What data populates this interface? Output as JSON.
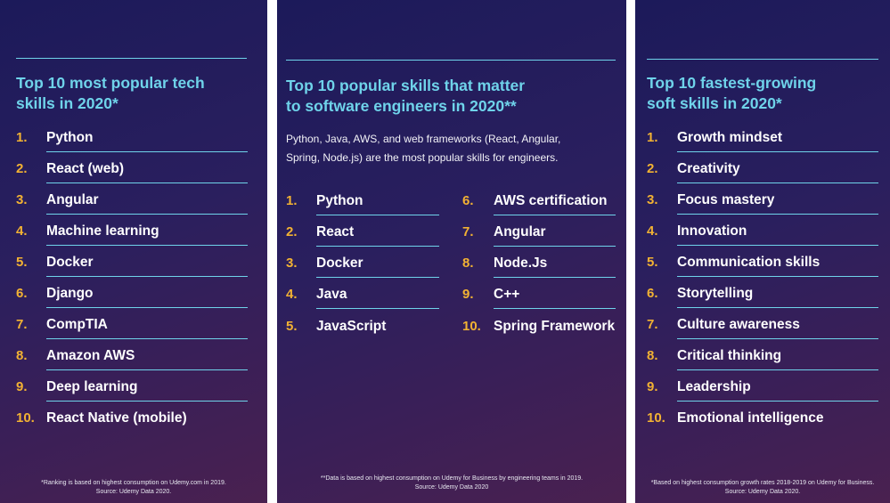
{
  "panels": [
    {
      "title_line1": "Top 10 most popular tech",
      "title_line2": "skills in 2020*",
      "items": [
        {
          "num": "1.",
          "label": "Python"
        },
        {
          "num": "2.",
          "label": "React (web)"
        },
        {
          "num": "3.",
          "label": "Angular"
        },
        {
          "num": "4.",
          "label": "Machine learning"
        },
        {
          "num": "5.",
          "label": "Docker"
        },
        {
          "num": "6.",
          "label": "Django"
        },
        {
          "num": "7.",
          "label": "CompTIA"
        },
        {
          "num": "8.",
          "label": "Amazon AWS"
        },
        {
          "num": "9.",
          "label": "Deep learning"
        },
        {
          "num": "10.",
          "label": "React Native (mobile)"
        }
      ],
      "footnote_line1": "*Ranking is based on highest consumption on Udemy.com in 2019.",
      "footnote_line2": "Source: Udemy Data 2020."
    },
    {
      "title_line1": "Top 10 popular skills that matter",
      "title_line2": "to software engineers in 2020**",
      "description_line1": "Python, Java, AWS, and web frameworks (React, Angular,",
      "description_line2": "Spring, Node.js) are the most popular skills for engineers.",
      "items": [
        {
          "num": "1.",
          "label": "Python"
        },
        {
          "num": "2.",
          "label": "React"
        },
        {
          "num": "3.",
          "label": "Docker"
        },
        {
          "num": "4.",
          "label": "Java"
        },
        {
          "num": "5.",
          "label": "JavaScript"
        },
        {
          "num": "6.",
          "label": "AWS certification"
        },
        {
          "num": "7.",
          "label": "Angular"
        },
        {
          "num": "8.",
          "label": "Node.Js"
        },
        {
          "num": "9.",
          "label": "C++"
        },
        {
          "num": "10.",
          "label": "Spring Framework"
        }
      ],
      "footnote_line1": "**Data is based on highest consumption on Udemy for Business by engineering teams in 2019.",
      "footnote_line2": "Source: Udemy Data 2020"
    },
    {
      "title_line1": "Top 10 fastest-growing",
      "title_line2": "soft skills in 2020*",
      "items": [
        {
          "num": "1.",
          "label": "Growth mindset"
        },
        {
          "num": "2.",
          "label": "Creativity"
        },
        {
          "num": "3.",
          "label": "Focus mastery"
        },
        {
          "num": "4.",
          "label": "Innovation"
        },
        {
          "num": "5.",
          "label": "Communication skills"
        },
        {
          "num": "6.",
          "label": "Storytelling"
        },
        {
          "num": "7.",
          "label": "Culture awareness"
        },
        {
          "num": "8.",
          "label": "Critical thinking"
        },
        {
          "num": "9.",
          "label": "Leadership"
        },
        {
          "num": "10.",
          "label": "Emotional intelligence"
        }
      ],
      "footnote_line1": "*Based on highest consumption growth rates 2018-2019 on Udemy for Business.",
      "footnote_line2": "Source: Udemy Data 2020."
    }
  ],
  "colors": {
    "accent": "#6fd3ea",
    "number": "#f2b233",
    "background": "#2a1f5e"
  }
}
